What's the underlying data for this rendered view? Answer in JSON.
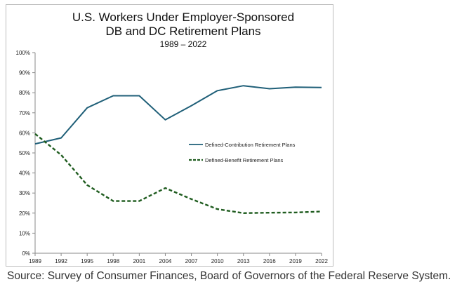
{
  "chart_data": {
    "type": "line",
    "title_line1": "U.S. Workers Under Employer-Sponsored",
    "title_line2": "DB and DC Retirement Plans",
    "subtitle": "1989 – 2022",
    "categories": [
      "1989",
      "1992",
      "1995",
      "1998",
      "2001",
      "2004",
      "2007",
      "2010",
      "2013",
      "2016",
      "2019",
      "2022"
    ],
    "y_ticks": [
      "0%",
      "10%",
      "20%",
      "30%",
      "40%",
      "50%",
      "60%",
      "70%",
      "80%",
      "90%",
      "100%"
    ],
    "ylim": [
      0,
      100
    ],
    "legend_position": "center-right",
    "series": [
      {
        "name": "Defined-Contribution Retirement Plans",
        "style": "solid",
        "color": "#1f5f78",
        "values": [
          54.5,
          57.5,
          72.5,
          78.5,
          78.5,
          66.5,
          73.5,
          81,
          83.5,
          82,
          82.8,
          82.6
        ]
      },
      {
        "name": "Defined-Benefit Retirement Plans",
        "style": "dashed",
        "color": "#1f5c1f",
        "values": [
          59.5,
          49,
          34,
          26,
          26,
          32.5,
          27,
          22,
          20,
          20.2,
          20.3,
          20.8
        ]
      }
    ]
  },
  "source": "Source: Survey of Consumer Finances, Board of Governors of the Federal Reserve System."
}
